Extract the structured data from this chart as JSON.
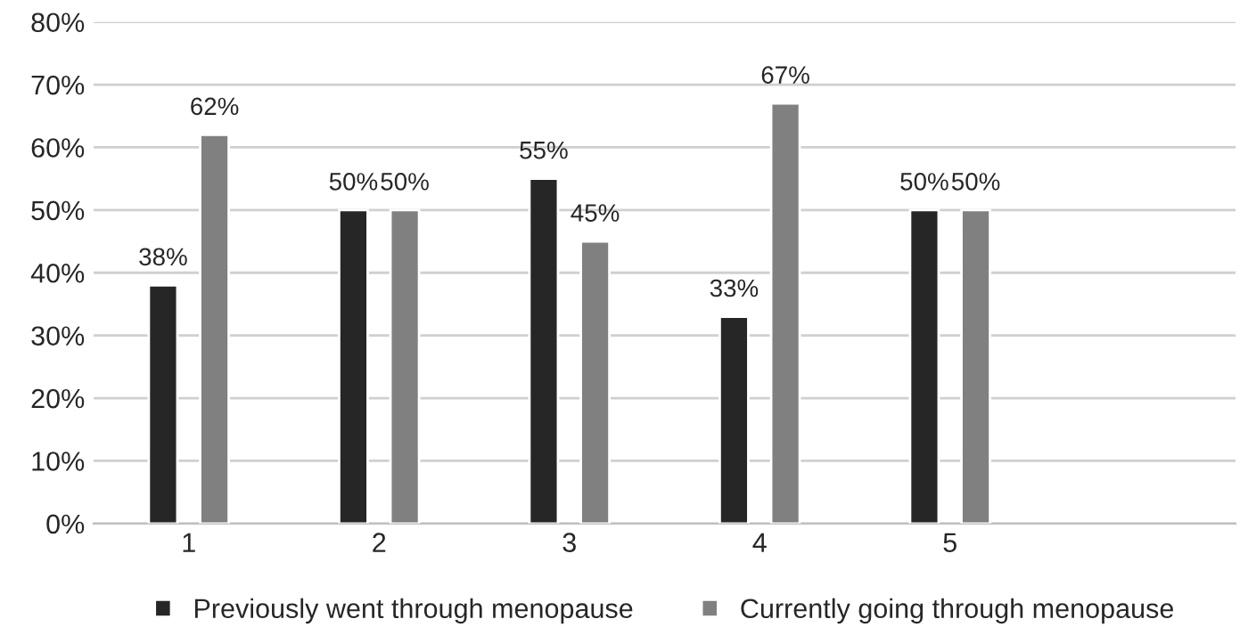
{
  "chart_data": {
    "type": "bar",
    "categories": [
      "1",
      "2",
      "3",
      "4",
      "5",
      null
    ],
    "series": [
      {
        "name": "Previously went through menopause",
        "color": "#262626",
        "values": [
          38,
          50,
          55,
          33,
          50,
          null
        ],
        "value_labels": [
          "38%",
          "50%",
          "55%",
          "33%",
          "50%",
          null
        ]
      },
      {
        "name": "Currently going through menopause",
        "color": "#808080",
        "values": [
          62,
          50,
          45,
          67,
          50,
          null
        ],
        "value_labels": [
          "62%",
          "50%",
          "45%",
          "67%",
          "50%",
          null
        ]
      }
    ],
    "ylim": [
      0,
      80
    ],
    "yticks": [
      {
        "value": 0,
        "label": "0%"
      },
      {
        "value": 10,
        "label": "10%"
      },
      {
        "value": 20,
        "label": "20%"
      },
      {
        "value": 30,
        "label": "30%"
      },
      {
        "value": 40,
        "label": "40%"
      },
      {
        "value": 50,
        "label": "50%"
      },
      {
        "value": 60,
        "label": "60%"
      },
      {
        "value": 70,
        "label": "70%"
      },
      {
        "value": 80,
        "label": "80%"
      }
    ],
    "grid": "y",
    "legend": "bottom"
  }
}
